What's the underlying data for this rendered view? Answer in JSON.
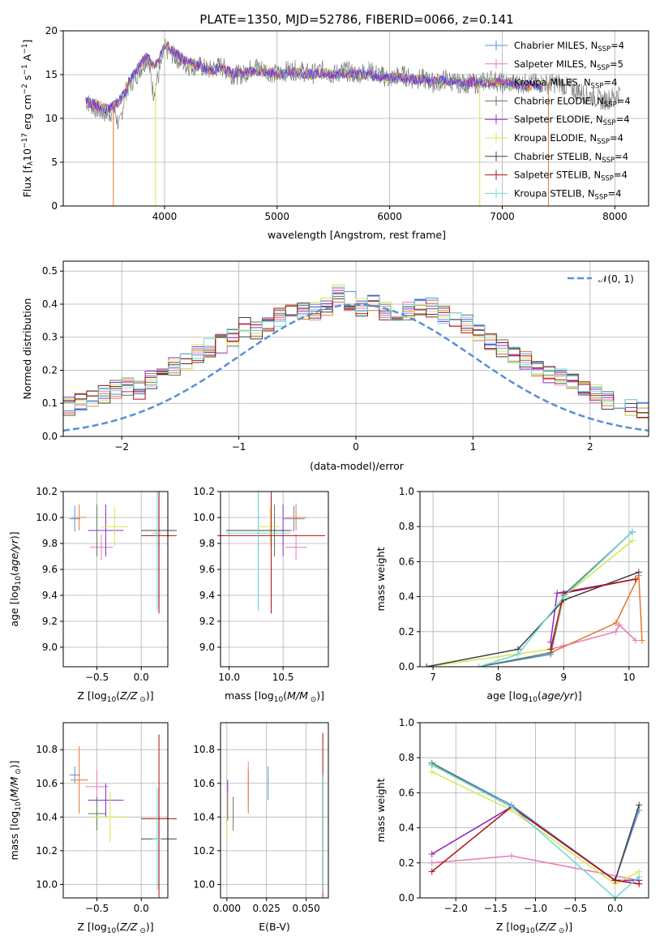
{
  "title": "PLATE=1350, MJD=52786, FIBERID=0066, z=0.141",
  "models": [
    {
      "key": "cm",
      "label": "Chabrier MILES, N",
      "sub": "SSP",
      "eq": "=4",
      "color": "#5a8fd6"
    },
    {
      "key": "sm",
      "label": "Salpeter MILES, N",
      "sub": "SSP",
      "eq": "=5",
      "color": "#e879b8"
    },
    {
      "key": "km",
      "label": "Kroupa MILES, N",
      "sub": "SSP",
      "eq": "=4",
      "color": "#e7762e"
    },
    {
      "key": "ce",
      "label": "Chabrier ELODIE, N",
      "sub": "SSP",
      "eq": "=4",
      "color": "#5a7a5a"
    },
    {
      "key": "se",
      "label": "Salpeter ELODIE, N",
      "sub": "SSP",
      "eq": "=4",
      "color": "#8a2bd0"
    },
    {
      "key": "ke",
      "label": "Kroupa ELODIE, N",
      "sub": "SSP",
      "eq": "=4",
      "color": "#d4e650"
    },
    {
      "key": "cs",
      "label": "Chabrier STELIB, N",
      "sub": "SSP",
      "eq": "=4",
      "color": "#404040"
    },
    {
      "key": "ss",
      "label": "Salpeter STELIB, N",
      "sub": "SSP",
      "eq": "=4",
      "color": "#b01010"
    },
    {
      "key": "ks",
      "label": "Kroupa STELIB, N",
      "sub": "SSP",
      "eq": "=4",
      "color": "#70d8d8"
    }
  ],
  "chart_data": [
    {
      "id": "spectrum",
      "type": "line",
      "xlabel": "wavelength [Angstrom, rest frame]",
      "ylabel": "Flux [f",
      "xlim": [
        3100,
        8300
      ],
      "ylim": [
        0,
        20
      ],
      "xticks": [
        4000,
        5000,
        6000,
        7000,
        8000
      ],
      "yticks": [
        0,
        5,
        10,
        15,
        20
      ],
      "data_series": {
        "name": "data",
        "color": "#808080",
        "x": [
          3300,
          3400,
          3500,
          3550,
          3600,
          3650,
          3700,
          3750,
          3800,
          3850,
          3900,
          3950,
          4000,
          4100,
          4200,
          4300,
          4400,
          4500,
          4600,
          4700,
          4800,
          4900,
          5000,
          5100,
          5200,
          5300,
          5400,
          5500,
          5600,
          5700,
          5800,
          5900,
          6000,
          6100,
          6200,
          6300,
          6400,
          6500,
          6600,
          6700,
          6800,
          6900,
          7000,
          7100,
          7200,
          7300,
          7400,
          7500,
          7600,
          7700,
          7800,
          7900,
          8000,
          8050
        ],
        "y": [
          12,
          11,
          10.5,
          11,
          9,
          13,
          14,
          15,
          16,
          17,
          13,
          15,
          18,
          17,
          16,
          16,
          15.5,
          16,
          15,
          15,
          16,
          15.5,
          15,
          15.5,
          15.5,
          15,
          15.5,
          15,
          15.5,
          15,
          15.5,
          15,
          14.5,
          15,
          14.5,
          14.5,
          14,
          14.5,
          14,
          14,
          14,
          14.5,
          14,
          14,
          14,
          14,
          14,
          14,
          13.5,
          13,
          12.5,
          12,
          12.5,
          13
        ]
      },
      "model_series": {
        "x": [
          3300,
          3400,
          3500,
          3550,
          3600,
          3650,
          3700,
          3750,
          3800,
          3850,
          3900,
          3950,
          4000,
          4100,
          4200,
          4300,
          4400,
          4500,
          4600,
          4700,
          4800,
          4900,
          5000,
          5100,
          5200,
          5300,
          5400,
          5500,
          5600,
          5700,
          5800,
          5900,
          6000,
          6100,
          6200,
          6300,
          6400,
          6500,
          6600,
          6700,
          6800,
          6900,
          7000,
          7100,
          7200,
          7300,
          7350
        ],
        "y": [
          12,
          11.5,
          11,
          11.5,
          12,
          13,
          14.5,
          15.5,
          16.5,
          17,
          16,
          16.5,
          18.5,
          17.5,
          16.5,
          16,
          15.5,
          15.8,
          15.2,
          15.2,
          15.5,
          15.3,
          15,
          15.2,
          15.2,
          15,
          15.2,
          15,
          15.1,
          15,
          15,
          14.8,
          14.6,
          14.6,
          14.5,
          14.4,
          14.3,
          14.3,
          14.2,
          14.1,
          14.1,
          14.2,
          14,
          13.9,
          13.8,
          13.7,
          13.7
        ]
      }
    },
    {
      "id": "residual",
      "type": "histogram",
      "xlabel": "(data-model)/error",
      "ylabel": "Normed distribution",
      "xlim": [
        -2.5,
        2.5
      ],
      "ylim": [
        0,
        0.53
      ],
      "xticks": [
        -2,
        -1,
        0,
        1,
        2
      ],
      "yticks": [
        0.0,
        0.1,
        0.2,
        0.3,
        0.4,
        0.5
      ],
      "bin_width": 0.1,
      "legend": "$\\mathcal{N}(0,1)$",
      "legend_label": "𝒩(0, 1)",
      "values": [
        0.03,
        0.03,
        0.04,
        0.05,
        0.05,
        0.06,
        0.07,
        0.08,
        0.07,
        0.09,
        0.09,
        0.1,
        0.11,
        0.13,
        0.14,
        0.15,
        0.14,
        0.17,
        0.19,
        0.21,
        0.23,
        0.25,
        0.27,
        0.28,
        0.3,
        0.33,
        0.32,
        0.33,
        0.36,
        0.37,
        0.38,
        0.38,
        0.39,
        0.43,
        0.41,
        0.39,
        0.4,
        0.38,
        0.37,
        0.38,
        0.39,
        0.39,
        0.37,
        0.36,
        0.34,
        0.31,
        0.29,
        0.27,
        0.25,
        0.23,
        0.21,
        0.19,
        0.18,
        0.16,
        0.15,
        0.13,
        0.11,
        0.1,
        0.09,
        0.08,
        0.07,
        0.06,
        0.05,
        0.05,
        0.04,
        0.04,
        0.03,
        0.03,
        0.03,
        0.03
      ]
    },
    {
      "id": "age_vs_Z",
      "type": "scatter",
      "xlabel": "Z [log",
      "ylabel": "age  [log",
      "xlim": [
        -0.88,
        0.3
      ],
      "ylim": [
        8.85,
        10.2
      ],
      "xticks": [
        -0.5,
        0.0
      ],
      "yticks": [
        9.0,
        9.2,
        9.4,
        9.6,
        9.8,
        10.0,
        10.2
      ],
      "points": [
        {
          "x": -0.75,
          "y": 9.99,
          "xerr": 0.06,
          "yerr": 0.1,
          "m": "cm"
        },
        {
          "x": -0.45,
          "y": 9.77,
          "xerr": 0.13,
          "yerr": 0.1,
          "m": "sm"
        },
        {
          "x": -0.7,
          "y": 10.0,
          "xerr": 0.08,
          "yerr": 0.1,
          "m": "km"
        },
        {
          "x": -0.5,
          "y": 9.9,
          "xerr": 0.1,
          "yerr": 0.2,
          "m": "ce"
        },
        {
          "x": -0.4,
          "y": 9.9,
          "xerr": 0.2,
          "yerr": 0.2,
          "m": "se"
        },
        {
          "x": -0.3,
          "y": 9.93,
          "xerr": 0.15,
          "yerr": 0.15,
          "m": "ke"
        },
        {
          "x": 0.2,
          "y": 9.9,
          "xerr": 0.2,
          "yerr": 0.6,
          "m": "cs"
        },
        {
          "x": 0.2,
          "y": 9.86,
          "xerr": 0.2,
          "yerr": 0.6,
          "m": "ss"
        },
        {
          "x": 0.18,
          "y": 9.88,
          "xerr": 0.05,
          "yerr": 0.6,
          "m": "ks"
        }
      ]
    },
    {
      "id": "age_vs_mass",
      "type": "scatter",
      "xlabel": "mass [log",
      "ylabel": "",
      "xlim": [
        9.92,
        10.92
      ],
      "ylim": [
        8.85,
        10.2
      ],
      "xticks": [
        10.0,
        10.5
      ],
      "yticks": [
        9.0,
        9.2,
        9.4,
        9.6,
        9.8,
        10.0,
        10.2
      ],
      "points": [
        {
          "x": 10.6,
          "y": 9.99,
          "xerr": 0.1,
          "yerr": 0.1,
          "m": "cm"
        },
        {
          "x": 10.62,
          "y": 9.77,
          "xerr": 0.1,
          "yerr": 0.1,
          "m": "sm"
        },
        {
          "x": 10.62,
          "y": 10.0,
          "xerr": 0.1,
          "yerr": 0.1,
          "m": "km"
        },
        {
          "x": 10.42,
          "y": 9.9,
          "xerr": 0.08,
          "yerr": 0.2,
          "m": "ce"
        },
        {
          "x": 10.5,
          "y": 9.9,
          "xerr": 0.08,
          "yerr": 0.2,
          "m": "se"
        },
        {
          "x": 10.38,
          "y": 9.93,
          "xerr": 0.1,
          "yerr": 0.15,
          "m": "ke"
        },
        {
          "x": 10.27,
          "y": 9.9,
          "xerr": 0.3,
          "yerr": 0.6,
          "m": "cs"
        },
        {
          "x": 10.39,
          "y": 9.86,
          "xerr": 0.5,
          "yerr": 0.6,
          "m": "ss"
        },
        {
          "x": 10.27,
          "y": 9.88,
          "xerr": 0.3,
          "yerr": 0.6,
          "m": "ks"
        }
      ]
    },
    {
      "id": "weight_vs_age",
      "type": "line",
      "xlabel": "age  [log",
      "ylabel": "mass weight",
      "xlim": [
        6.8,
        10.3
      ],
      "ylim": [
        0,
        1
      ],
      "xticks": [
        7,
        8,
        9,
        10
      ],
      "yticks": [
        0.0,
        0.2,
        0.4,
        0.6,
        0.8,
        1.0
      ],
      "series": [
        {
          "m": "cm",
          "x": [
            7.7,
            8.8,
            9.0,
            10.05
          ],
          "y": [
            0.0,
            0.07,
            0.4,
            0.77
          ]
        },
        {
          "m": "sm",
          "x": [
            8.8,
            9.0,
            9.8,
            9.85,
            10.1
          ],
          "y": [
            0.1,
            0.12,
            0.2,
            0.24,
            0.15
          ]
        },
        {
          "m": "km",
          "x": [
            8.8,
            9.8,
            10.15,
            10.2
          ],
          "y": [
            0.08,
            0.25,
            0.52,
            0.15
          ]
        },
        {
          "m": "ce",
          "x": [
            7.7,
            8.8,
            9.0,
            10.05
          ],
          "y": [
            0.0,
            0.08,
            0.41,
            0.77
          ]
        },
        {
          "m": "se",
          "x": [
            8.8,
            8.9,
            10.1
          ],
          "y": [
            0.14,
            0.42,
            0.5
          ]
        },
        {
          "m": "ke",
          "x": [
            6.9,
            8.8,
            9.0,
            10.05
          ],
          "y": [
            0.0,
            0.1,
            0.4,
            0.72
          ]
        },
        {
          "m": "cs",
          "x": [
            6.9,
            8.3,
            9.0,
            10.15
          ],
          "y": [
            0.0,
            0.1,
            0.38,
            0.54
          ]
        },
        {
          "m": "ss",
          "x": [
            8.8,
            9.0,
            10.1
          ],
          "y": [
            0.1,
            0.42,
            0.5
          ]
        },
        {
          "m": "ks",
          "x": [
            7.7,
            8.3,
            9.0,
            10.05
          ],
          "y": [
            0.0,
            0.07,
            0.4,
            0.77
          ]
        }
      ]
    },
    {
      "id": "mass_vs_Z",
      "type": "scatter",
      "xlabel": "Z [log",
      "ylabel": "mass [log",
      "xlim": [
        -0.88,
        0.3
      ],
      "ylim": [
        9.92,
        10.96
      ],
      "xticks": [
        -0.5,
        0.0
      ],
      "yticks": [
        10.0,
        10.2,
        10.4,
        10.6,
        10.8
      ],
      "points": [
        {
          "x": -0.75,
          "y": 10.65,
          "xerr": 0.06,
          "yerr": 0.05,
          "m": "cm"
        },
        {
          "x": -0.5,
          "y": 10.58,
          "xerr": 0.13,
          "yerr": 0.1,
          "m": "sm"
        },
        {
          "x": -0.7,
          "y": 10.62,
          "xerr": 0.1,
          "yerr": 0.2,
          "m": "km"
        },
        {
          "x": -0.5,
          "y": 10.42,
          "xerr": 0.1,
          "yerr": 0.1,
          "m": "ce"
        },
        {
          "x": -0.4,
          "y": 10.5,
          "xerr": 0.2,
          "yerr": 0.1,
          "m": "se"
        },
        {
          "x": -0.35,
          "y": 10.4,
          "xerr": 0.2,
          "yerr": 0.15,
          "m": "ke"
        },
        {
          "x": 0.2,
          "y": 10.27,
          "xerr": 0.2,
          "yerr": 0.3,
          "m": "cs"
        },
        {
          "x": 0.2,
          "y": 10.39,
          "xerr": 0.2,
          "yerr": 0.5,
          "m": "ss"
        },
        {
          "x": 0.18,
          "y": 10.27,
          "xerr": 0.05,
          "yerr": 0.3,
          "m": "ks"
        }
      ]
    },
    {
      "id": "mass_vs_ebv",
      "type": "scatter",
      "xlabel": "E(B-V)",
      "ylabel": "",
      "xlim": [
        -0.004,
        0.064
      ],
      "ylim": [
        9.92,
        10.96
      ],
      "xticks": [
        0.0,
        0.025,
        0.05
      ],
      "yticks": [
        10.0,
        10.2,
        10.4,
        10.6,
        10.8
      ],
      "points": [
        {
          "x": 0.026,
          "y": 10.6,
          "xerr": 0,
          "yerr": 0.1,
          "m": "cm"
        },
        {
          "x": 0.0135,
          "y": 10.6,
          "xerr": 0,
          "yerr": 0.13,
          "m": "sm"
        },
        {
          "x": 0.0135,
          "y": 10.55,
          "xerr": 0,
          "yerr": 0.13,
          "m": "km"
        },
        {
          "x": 0.004,
          "y": 10.42,
          "xerr": 0,
          "yerr": 0.1,
          "m": "ce"
        },
        {
          "x": 0.0005,
          "y": 10.5,
          "xerr": 0,
          "yerr": 0.12,
          "m": "se"
        },
        {
          "x": 0.0,
          "y": 10.4,
          "xerr": 0,
          "yerr": 0.15,
          "m": "ke"
        },
        {
          "x": 0.0605,
          "y": 10.3,
          "xerr": 0,
          "yerr": 0.35,
          "m": "cs"
        },
        {
          "x": 0.0605,
          "y": 10.4,
          "xerr": 0,
          "yerr": 0.5,
          "m": "ss"
        },
        {
          "x": 0.0605,
          "y": 10.3,
          "xerr": 0,
          "yerr": 0.35,
          "m": "ks"
        }
      ]
    },
    {
      "id": "weight_vs_Z",
      "type": "line",
      "xlabel": "Z [log",
      "ylabel": "mass weight",
      "xlim": [
        -2.45,
        0.42
      ],
      "ylim": [
        0,
        1
      ],
      "xticks": [
        -2.0,
        -1.5,
        -1.0,
        -0.5,
        0.0
      ],
      "yticks": [
        0.0,
        0.2,
        0.4,
        0.6,
        0.8,
        1.0
      ],
      "series": [
        {
          "m": "cm",
          "x": [
            -2.3,
            -1.3,
            0.0,
            0.3
          ],
          "y": [
            0.77,
            0.53,
            0.1,
            0.5
          ]
        },
        {
          "m": "sm",
          "x": [
            -2.3,
            -1.3,
            0.3
          ],
          "y": [
            0.2,
            0.24,
            0.1
          ]
        },
        {
          "m": "km",
          "x": [
            -2.3,
            -1.3,
            0.0,
            0.3
          ],
          "y": [
            0.25,
            0.52,
            0.1,
            0.08
          ]
        },
        {
          "m": "ce",
          "x": [
            -2.3,
            -1.3,
            0.0,
            0.3
          ],
          "y": [
            0.77,
            0.52,
            0.1,
            0.1
          ]
        },
        {
          "m": "se",
          "x": [
            -2.3,
            -1.3,
            0.0,
            0.3
          ],
          "y": [
            0.25,
            0.52,
            0.1,
            0.1
          ]
        },
        {
          "m": "ke",
          "x": [
            -2.3,
            -1.3,
            0.0,
            0.3
          ],
          "y": [
            0.72,
            0.5,
            0.08,
            0.15
          ]
        },
        {
          "m": "cs",
          "x": [
            -2.3,
            -1.3,
            0.0,
            0.3
          ],
          "y": [
            0.76,
            0.52,
            0.1,
            0.53
          ]
        },
        {
          "m": "ss",
          "x": [
            -2.3,
            -1.3,
            0.0,
            0.3
          ],
          "y": [
            0.15,
            0.52,
            0.1,
            0.08
          ]
        },
        {
          "m": "ks",
          "x": [
            -2.3,
            -1.3,
            0.0,
            0.3
          ],
          "y": [
            0.76,
            0.52,
            0.0,
            0.12
          ]
        }
      ]
    }
  ]
}
